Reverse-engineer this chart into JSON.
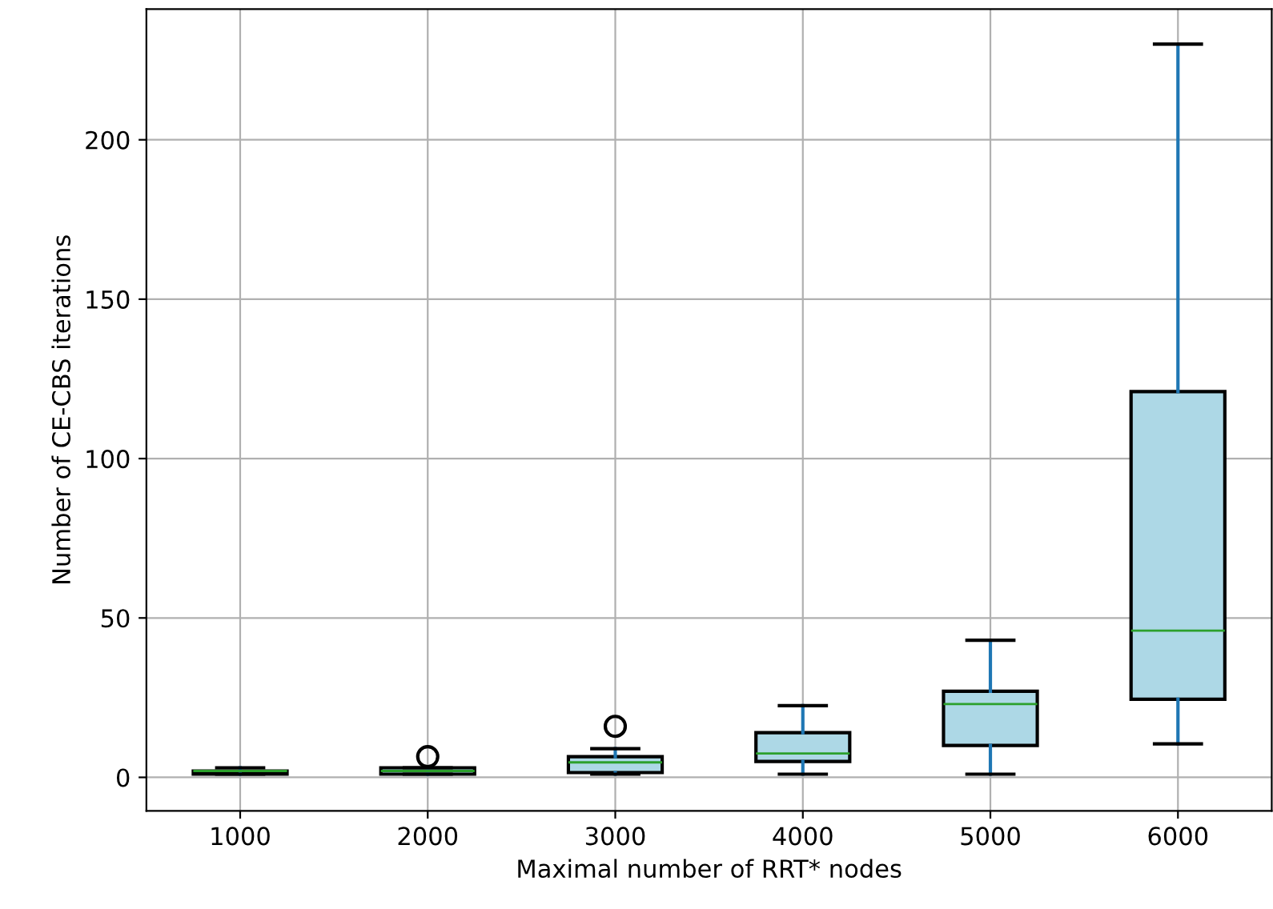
{
  "chart_data": {
    "type": "box",
    "xlabel": "Maximal number of RRT* nodes",
    "ylabel": "Number of CE-CBS iterations",
    "categories": [
      "1000",
      "2000",
      "3000",
      "4000",
      "5000",
      "6000"
    ],
    "color": "#add8e6",
    "boxes": [
      {
        "low": 1,
        "q1": 1,
        "median": 2,
        "q3": 2,
        "high": 3
      },
      {
        "low": 1,
        "q1": 1,
        "median": 2,
        "q3": 3,
        "high": 3,
        "outliers": [
          6.5
        ]
      },
      {
        "low": 1,
        "q1": 1.5,
        "median": 4.7,
        "q3": 6.5,
        "high": 9,
        "outliers": [
          16
        ]
      },
      {
        "low": 1,
        "q1": 5,
        "median": 7.5,
        "q3": 14,
        "high": 22.5
      },
      {
        "low": 1,
        "q1": 10,
        "median": 23,
        "q3": 27,
        "high": 43
      },
      {
        "low": 10.5,
        "q1": 24.5,
        "median": 46,
        "q3": 121,
        "high": 230
      }
    ],
    "ylim": [
      -10.5,
      241
    ],
    "yticks": [
      0,
      50,
      100,
      150,
      200
    ],
    "grid": true
  }
}
